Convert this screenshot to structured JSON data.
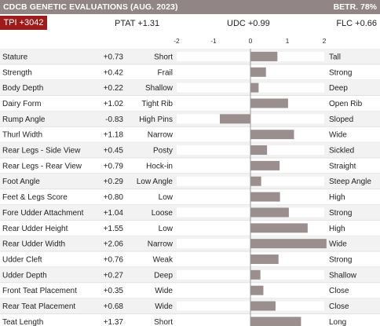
{
  "header": {
    "title": "CDCB GENETIC EVALUATIONS (AUG. 2023)",
    "reliability": "BETR. 78%"
  },
  "summary": {
    "tpi": "TPI +3042",
    "ptat": "PTAT +1.31",
    "udc": "UDC +0.99",
    "flc": "FLC +0.66"
  },
  "colors": {
    "header_bg": "#918586",
    "tpi_bg": "#9e1b1b",
    "bar": "#9a8e8f",
    "row_alt": "#f2f2f2"
  },
  "chart_data": {
    "type": "bar",
    "orientation": "horizontal",
    "xlim": [
      -2,
      2
    ],
    "xticks": [
      -2,
      -1,
      0,
      1,
      2
    ],
    "xtick_labels": [
      "-2",
      "-1",
      "0",
      "1",
      "2"
    ],
    "grid": false,
    "rows": [
      {
        "trait": "Stature",
        "value": 0.73,
        "label": "+0.73",
        "low": "Short",
        "high": "Tall"
      },
      {
        "trait": "Strength",
        "value": 0.42,
        "label": "+0.42",
        "low": "Frail",
        "high": "Strong"
      },
      {
        "trait": "Body Depth",
        "value": 0.22,
        "label": "+0.22",
        "low": "Shallow",
        "high": "Deep"
      },
      {
        "trait": "Dairy Form",
        "value": 1.02,
        "label": "+1.02",
        "low": "Tight Rib",
        "high": "Open Rib"
      },
      {
        "trait": "Rump Angle",
        "value": -0.83,
        "label": "-0.83",
        "low": "High Pins",
        "high": "Sloped"
      },
      {
        "trait": "Thurl Width",
        "value": 1.18,
        "label": "+1.18",
        "low": "Narrow",
        "high": "Wide"
      },
      {
        "trait": "Rear Legs - Side View",
        "value": 0.45,
        "label": "+0.45",
        "low": "Posty",
        "high": "Sickled"
      },
      {
        "trait": "Rear Legs - Rear View",
        "value": 0.79,
        "label": "+0.79",
        "low": "Hock-in",
        "high": "Straight"
      },
      {
        "trait": "Foot Angle",
        "value": 0.29,
        "label": "+0.29",
        "low": "Low Angle",
        "high": "Steep Angle"
      },
      {
        "trait": "Feet & Legs Score",
        "value": 0.8,
        "label": "+0.80",
        "low": "Low",
        "high": "High"
      },
      {
        "trait": "Fore Udder Attachment",
        "value": 1.04,
        "label": "+1.04",
        "low": "Loose",
        "high": "Strong"
      },
      {
        "trait": "Rear Udder Height",
        "value": 1.55,
        "label": "+1.55",
        "low": "Low",
        "high": "High"
      },
      {
        "trait": "Rear Udder Width",
        "value": 2.06,
        "label": "+2.06",
        "low": "Narrow",
        "high": "Wide"
      },
      {
        "trait": "Udder Cleft",
        "value": 0.76,
        "label": "+0.76",
        "low": "Weak",
        "high": "Strong"
      },
      {
        "trait": "Udder Depth",
        "value": 0.27,
        "label": "+0.27",
        "low": "Deep",
        "high": "Shallow"
      },
      {
        "trait": "Front Teat Placement",
        "value": 0.35,
        "label": "+0.35",
        "low": "Wide",
        "high": "Close"
      },
      {
        "trait": "Rear Teat Placement",
        "value": 0.68,
        "label": "+0.68",
        "low": "Wide",
        "high": "Close"
      },
      {
        "trait": "Teat Length",
        "value": 1.37,
        "label": "+1.37",
        "low": "Short",
        "high": "Long"
      }
    ]
  }
}
